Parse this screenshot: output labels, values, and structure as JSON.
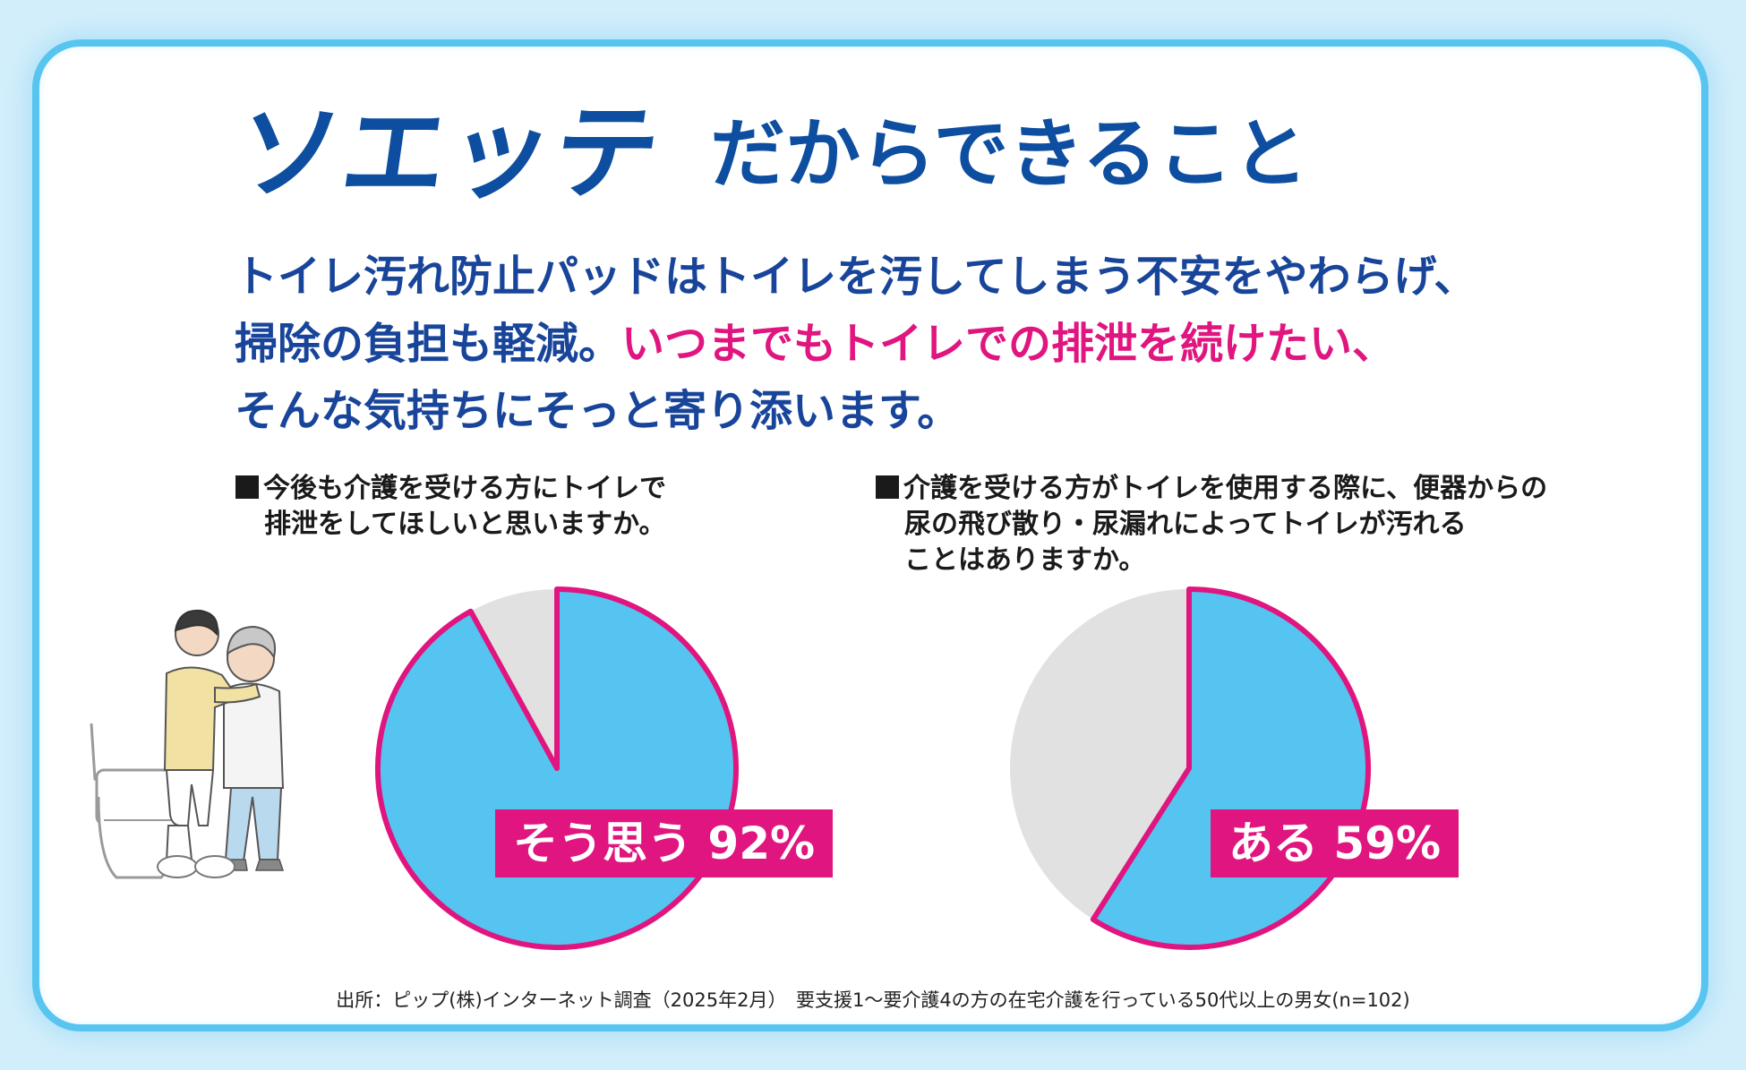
{
  "title": {
    "brand": "ソエッテ",
    "rest": "だからできること"
  },
  "lead": {
    "line1": "トイレ汚れ防止パッドはトイレを汚してしまう不安をやわらげ、",
    "line2_normal": "掃除の負担も軽減。",
    "line2_highlight": "いつまでもトイレでの排泄を続けたい、",
    "line3": "そんな気持ちにそっと寄り添います。"
  },
  "colors": {
    "brand_blue": "#0d4ea0",
    "highlight_pink": "#e0157f",
    "pie_blue": "#55c4f0",
    "pie_gray": "#e1e1e1",
    "frame_blue": "#58c4f0"
  },
  "chart_data": [
    {
      "type": "pie",
      "title_line1": "今後も介護を受ける方にトイレで",
      "title_line2": "排泄をしてほしいと思いますか。",
      "slices": [
        {
          "label": "そう思う",
          "value": 92,
          "color": "#55c4f0"
        },
        {
          "label": "",
          "value": 8,
          "color": "#e1e1e1"
        }
      ],
      "data_label": "そう思う 92%"
    },
    {
      "type": "pie",
      "title_line1": "介護を受ける方がトイレを使用する際に、便器からの",
      "title_line2": "尿の飛び散り・尿漏れによってトイレが汚れる",
      "title_line3": "ことはありますか。",
      "slices": [
        {
          "label": "ある",
          "value": 59,
          "color": "#55c4f0"
        },
        {
          "label": "",
          "value": 41,
          "color": "#e1e1e1"
        }
      ],
      "data_label": "ある 59%"
    }
  ],
  "illustration": {
    "icon": "caregiver-assisting-elderly-to-toilet-icon"
  },
  "source": "出所：ピップ(株)インターネット調査（2025年2月）　要支援1～要介護4の方の在宅介護を行っている50代以上の男女(n=102)"
}
